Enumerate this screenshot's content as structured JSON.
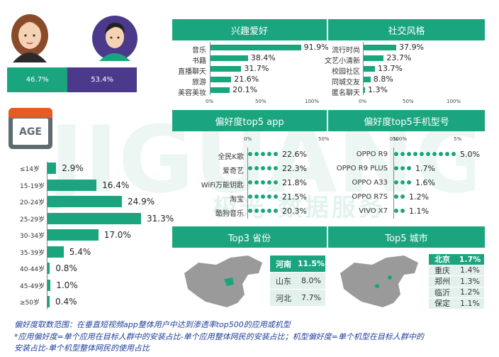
{
  "gender": {
    "female_pct": "46.7%",
    "male_pct": "53.4%",
    "female_value": 46.7,
    "male_value": 53.4,
    "female_color": "#1aa57f",
    "male_color": "#4b3a8c"
  },
  "age": {
    "icon_label": "AGE",
    "rows": [
      {
        "label": "≤14岁",
        "value": 2.9,
        "text": "2.9%"
      },
      {
        "label": "15-19岁",
        "value": 16.4,
        "text": "16.4%"
      },
      {
        "label": "20-24岁",
        "value": 24.9,
        "text": "24.9%"
      },
      {
        "label": "25-29岁",
        "value": 31.3,
        "text": "31.3%"
      },
      {
        "label": "30-34岁",
        "value": 17.0,
        "text": "17.0%"
      },
      {
        "label": "35-39岁",
        "value": 5.4,
        "text": "5.4%"
      },
      {
        "label": "40-44岁",
        "value": 0.8,
        "text": "0.8%"
      },
      {
        "label": "45-49岁",
        "value": 1.0,
        "text": "1.0%"
      },
      {
        "label": "≥50岁",
        "value": 0.4,
        "text": "0.4%"
      }
    ]
  },
  "interest": {
    "title": "兴趣爱好",
    "rows": [
      {
        "label": "音乐",
        "value": 91.9,
        "text": "91.9%"
      },
      {
        "label": "书籍",
        "value": 38.4,
        "text": "38.4%"
      },
      {
        "label": "直播聊天",
        "value": 31.7,
        "text": "31.7%"
      },
      {
        "label": "旅游",
        "value": 21.6,
        "text": "21.6%"
      },
      {
        "label": "美容美妆",
        "value": 20.1,
        "text": "20.1%"
      }
    ],
    "ticks": [
      "0%",
      "50%",
      "100%"
    ]
  },
  "social": {
    "title": "社交风格",
    "rows": [
      {
        "label": "流行时尚",
        "value": 37.9,
        "text": "37.9%"
      },
      {
        "label": "文艺小清新",
        "value": 23.7,
        "text": "23.7%"
      },
      {
        "label": "校园社区",
        "value": 13.7,
        "text": "13.7%"
      },
      {
        "label": "同城交友",
        "value": 8.8,
        "text": "8.8%"
      },
      {
        "label": "匿名聊天",
        "value": 1.3,
        "text": "1.3%"
      }
    ],
    "ticks": [
      "0%",
      "50%",
      "100%"
    ]
  },
  "apps": {
    "title": "偏好度top5 app",
    "rows": [
      {
        "label": "全民K歌",
        "value": 22.6,
        "text": "22.6%"
      },
      {
        "label": "爱奇艺",
        "value": 22.3,
        "text": "22.3%"
      },
      {
        "label": "WiFi万能钥匙",
        "value": 21.8,
        "text": "21.8%"
      },
      {
        "label": "淘宝",
        "value": 21.5,
        "text": "21.5%"
      },
      {
        "label": "酷狗音乐",
        "value": 20.3,
        "text": "20.3%"
      }
    ],
    "ticks": [
      "0%",
      "50%",
      "100%"
    ]
  },
  "phones": {
    "title": "偏好度top5手机型号",
    "rows": [
      {
        "label": "OPPO R9",
        "value": 5.0,
        "text": "5.0%"
      },
      {
        "label": "OPPO R9 PLUS",
        "value": 1.7,
        "text": "1.7%"
      },
      {
        "label": "OPPO A33",
        "value": 1.6,
        "text": "1.6%"
      },
      {
        "label": "OPPO R7S",
        "value": 1.2,
        "text": "1.2%"
      },
      {
        "label": "VIVO X7",
        "value": 1.1,
        "text": "1.1%"
      }
    ],
    "ticks": [
      "0%",
      "5%"
    ]
  },
  "provinces": {
    "title": "Top3 省份",
    "rows": [
      {
        "label": "河南",
        "text": "11.5%"
      },
      {
        "label": "山东",
        "text": "8.0%"
      },
      {
        "label": "河北",
        "text": "7.7%"
      }
    ]
  },
  "cities": {
    "title": "Top5 城市",
    "rows": [
      {
        "label": "北京",
        "text": "1.7%"
      },
      {
        "label": "重庆",
        "text": "1.4%"
      },
      {
        "label": "郑州",
        "text": "1.3%"
      },
      {
        "label": "临沂",
        "text": "1.2%"
      },
      {
        "label": "保定",
        "text": "1.1%"
      }
    ]
  },
  "watermark": "极光  数据服务",
  "footnotes": {
    "line1": "偏好度取数范围：在垂直短视频app整体用户中达到渗透率top500的应用或机型",
    "line2": "*应用偏好度=单个应用在目标人群中的安装占比-单个应用整体网民的安装占比；机型偏好度=单个机型在目标人群中的",
    "line3": "安装占比-单个机型整体网民的使用占比"
  },
  "chart_data": [
    {
      "type": "bar",
      "categories": [
        "≤14岁",
        "15-19岁",
        "20-24岁",
        "25-29岁",
        "30-34岁",
        "35-39岁",
        "40-44岁",
        "45-49岁",
        "≥50岁"
      ],
      "values": [
        2.9,
        16.4,
        24.9,
        31.3,
        17.0,
        5.4,
        0.8,
        1.0,
        0.4
      ]
    },
    {
      "type": "bar",
      "title": "兴趣爱好",
      "categories": [
        "音乐",
        "书籍",
        "直播聊天",
        "旅游",
        "美容美妆"
      ],
      "values": [
        91.9,
        38.4,
        31.7,
        21.6,
        20.1
      ],
      "xlim": [
        0,
        100
      ]
    },
    {
      "type": "bar",
      "title": "社交风格",
      "categories": [
        "流行时尚",
        "文艺小清新",
        "校园社区",
        "同城交友",
        "匿名聊天"
      ],
      "values": [
        37.9,
        23.7,
        13.7,
        8.8,
        1.3
      ],
      "xlim": [
        0,
        100
      ]
    },
    {
      "type": "bar",
      "title": "偏好度top5 app",
      "categories": [
        "全民K歌",
        "爱奇艺",
        "WiFi万能钥匙",
        "淘宝",
        "酷狗音乐"
      ],
      "values": [
        22.6,
        22.3,
        21.8,
        21.5,
        20.3
      ],
      "xlim": [
        0,
        100
      ]
    },
    {
      "type": "bar",
      "title": "偏好度top5手机型号",
      "categories": [
        "OPPO R9",
        "OPPO R9 PLUS",
        "OPPO A33",
        "OPPO R7S",
        "VIVO X7"
      ],
      "values": [
        5.0,
        1.7,
        1.6,
        1.2,
        1.1
      ],
      "xlim": [
        0,
        5
      ]
    },
    {
      "type": "table",
      "title": "Top3 省份",
      "categories": [
        "河南",
        "山东",
        "河北"
      ],
      "values": [
        11.5,
        8.0,
        7.7
      ]
    },
    {
      "type": "table",
      "title": "Top5 城市",
      "categories": [
        "北京",
        "重庆",
        "郑州",
        "临沂",
        "保定"
      ],
      "values": [
        1.7,
        1.4,
        1.3,
        1.2,
        1.1
      ]
    },
    {
      "type": "bar",
      "categories": [
        "女",
        "男"
      ],
      "values": [
        46.7,
        53.4
      ]
    }
  ]
}
